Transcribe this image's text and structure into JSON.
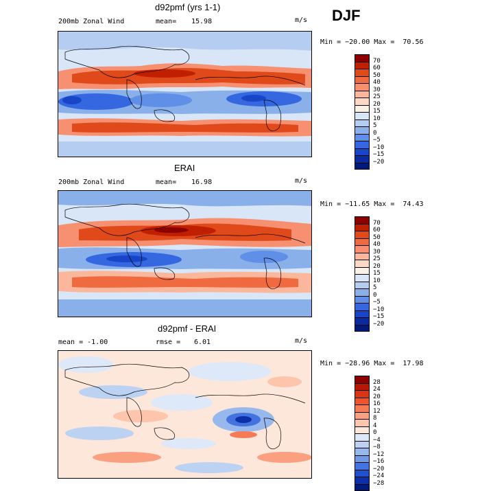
{
  "season": "DJF",
  "unit": "m/s",
  "panels": [
    {
      "title": "d92pmf (yrs 1-1)",
      "left_label": "200mb Zonal Wind",
      "stat_label": "mean=",
      "stat_value": "15.98",
      "minmax": "Min = −20.00 Max =",
      "max_value": "70.56",
      "colorbar_labels": [
        "70",
        "60",
        "50",
        "40",
        "30",
        "25",
        "20",
        "15",
        "10",
        "5",
        "0",
        "−5",
        "−10",
        "−15",
        "−20"
      ],
      "colors": [
        "#8b0000",
        "#c02000",
        "#e04a1a",
        "#f06a40",
        "#f79070",
        "#fbb79b",
        "#fdd9c4",
        "#fdf0e4",
        "#d9e6f7",
        "#b4cdf0",
        "#8ab0ea",
        "#5f8fe6",
        "#3467e0",
        "#1846c8",
        "#0a2aa0",
        "#001a7a"
      ]
    },
    {
      "title": "ERAI",
      "left_label": "200mb Zonal Wind",
      "stat_label": "mean=",
      "stat_value": "16.98",
      "minmax": "Min = −11.65 Max =",
      "max_value": "74.43",
      "colorbar_labels": [
        "70",
        "60",
        "50",
        "40",
        "30",
        "25",
        "20",
        "15",
        "10",
        "5",
        "0",
        "−5",
        "−10",
        "−15",
        "−20"
      ],
      "colors": [
        "#8b0000",
        "#c02000",
        "#e04a1a",
        "#f06a40",
        "#f79070",
        "#fbb79b",
        "#fdd9c4",
        "#fdf0e4",
        "#d9e6f7",
        "#b4cdf0",
        "#8ab0ea",
        "#5f8fe6",
        "#3467e0",
        "#1846c8",
        "#0a2aa0",
        "#001a7a"
      ]
    },
    {
      "title": "d92pmf - ERAI",
      "left_label": "mean =  -1.00",
      "stat_label": "rmse =",
      "stat_value": "6.01",
      "minmax": "Min = −28.96 Max =",
      "max_value": "17.98",
      "colorbar_labels": [
        "28",
        "24",
        "20",
        "16",
        "12",
        "8",
        "4",
        "0",
        "−4",
        "−8",
        "−12",
        "−16",
        "−20",
        "−24",
        "−28"
      ],
      "colors": [
        "#8b0000",
        "#b81800",
        "#d83515",
        "#ec5530",
        "#f57a55",
        "#fa9f80",
        "#fcc5ac",
        "#fde7da",
        "#dde9f8",
        "#bcd2f2",
        "#97b8ec",
        "#6f98e6",
        "#4472de",
        "#2150cc",
        "#0c30a8",
        "#001a7a"
      ]
    }
  ]
}
